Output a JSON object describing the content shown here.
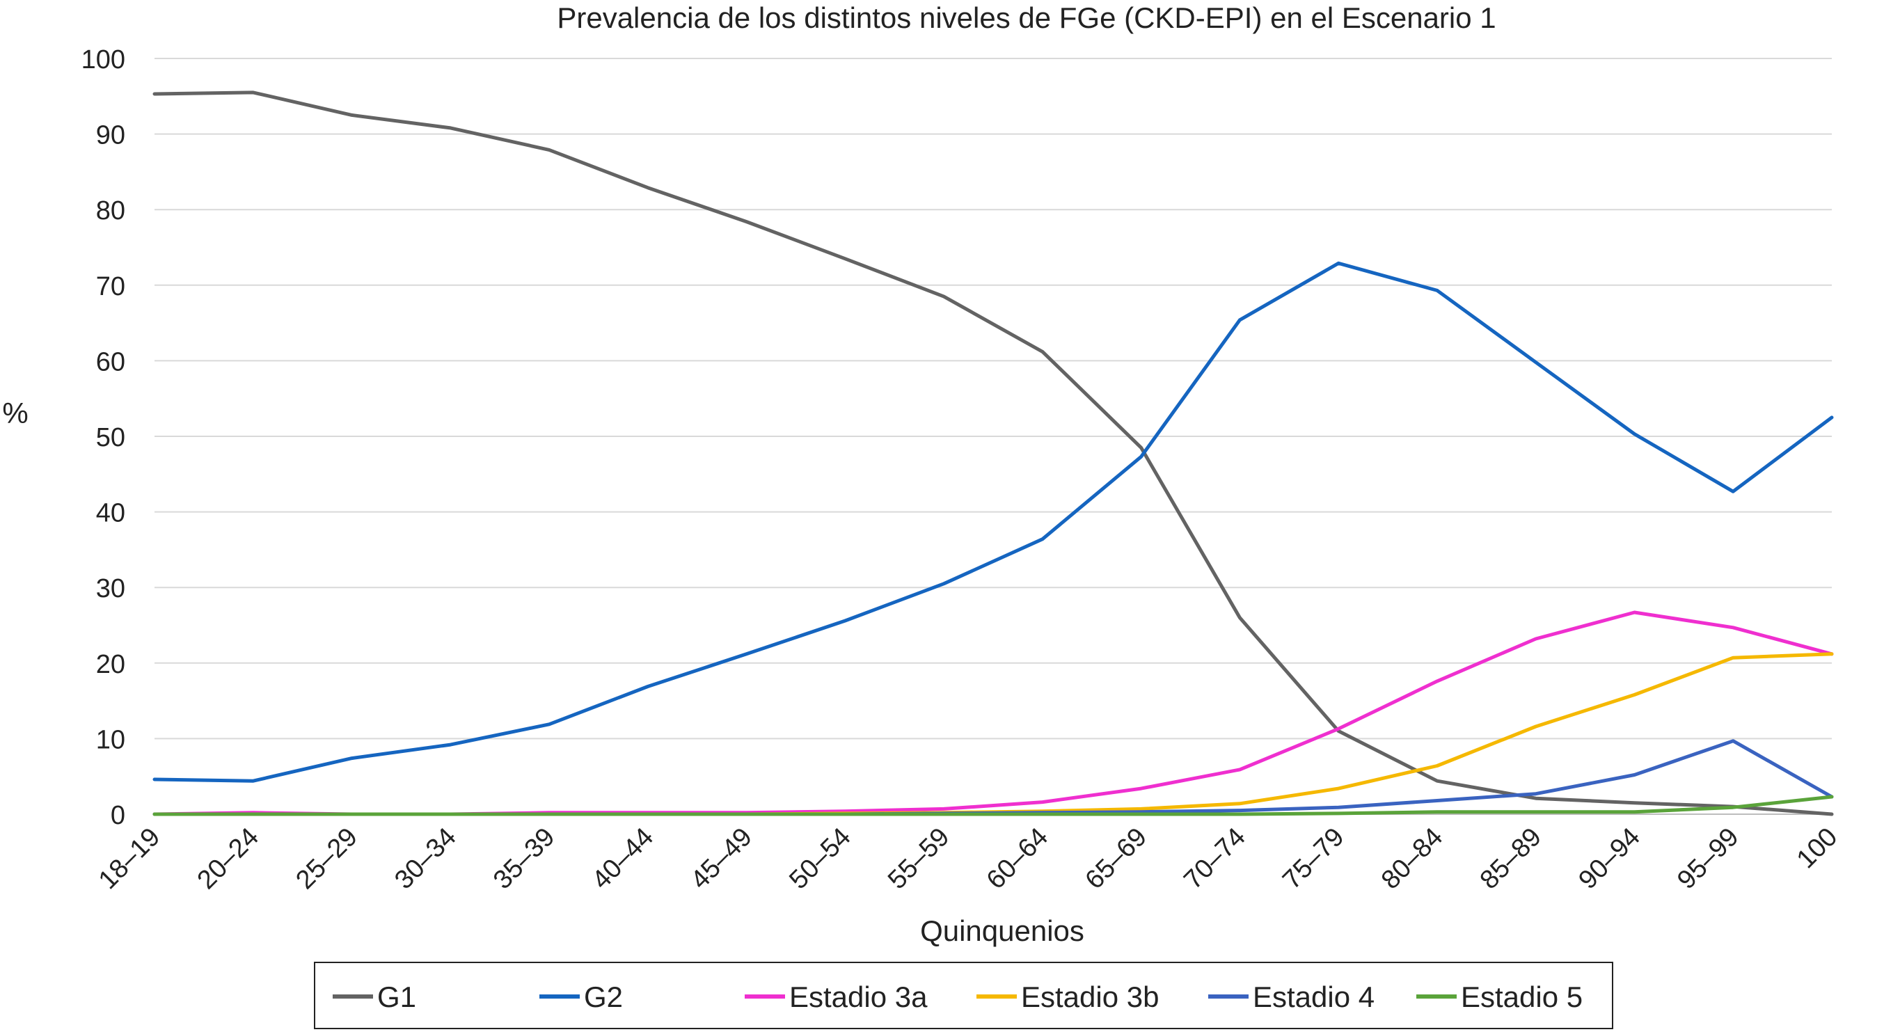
{
  "chart_data": {
    "type": "line",
    "title": "Prevalencia de los distintos niveles  de FGe (CKD-EPI) en el Escenario 1",
    "xlabel": "Quinquenios",
    "ylabel": "%",
    "ylim": [
      0,
      100
    ],
    "yticks": [
      0,
      10,
      20,
      30,
      40,
      50,
      60,
      70,
      80,
      90,
      100
    ],
    "grid": true,
    "legend_position": "bottom",
    "categories": [
      "18–19",
      "20–24",
      "25–29",
      "30–34",
      "35–39",
      "40–44",
      "45–49",
      "50–54",
      "55–59",
      "60–64",
      "65–69",
      "70–74",
      "75–79",
      "80–84",
      "85–89",
      "90–94",
      "95–99",
      "100"
    ],
    "series": [
      {
        "name": "G1",
        "color": "#636363",
        "values": [
          95.3,
          95.5,
          92.5,
          90.8,
          87.9,
          82.9,
          78.4,
          73.5,
          68.5,
          61.2,
          48.5,
          26.0,
          11.0,
          4.4,
          2.1,
          1.5,
          1.0,
          0.0
        ]
      },
      {
        "name": "G2",
        "color": "#1565c0",
        "values": [
          4.6,
          4.4,
          7.4,
          9.2,
          11.9,
          16.9,
          21.2,
          25.6,
          30.5,
          36.4,
          47.3,
          65.4,
          72.9,
          69.3,
          59.8,
          50.3,
          42.7,
          52.5
        ]
      },
      {
        "name": "Estadio 3a",
        "color": "#ef2fcf",
        "values": [
          0.0,
          0.2,
          0.0,
          0.0,
          0.2,
          0.2,
          0.2,
          0.4,
          0.7,
          1.6,
          3.4,
          5.9,
          11.3,
          17.6,
          23.2,
          26.7,
          24.7,
          21.2
        ]
      },
      {
        "name": "Estadio 3b",
        "color": "#f5b800",
        "values": [
          0.0,
          0.0,
          0.0,
          0.0,
          0.0,
          0.0,
          0.0,
          0.1,
          0.2,
          0.4,
          0.7,
          1.4,
          3.4,
          6.4,
          11.6,
          15.8,
          20.7,
          21.2
        ]
      },
      {
        "name": "Estadio 4",
        "color": "#3a63c0",
        "values": [
          0.0,
          0.0,
          0.0,
          0.0,
          0.0,
          0.0,
          0.0,
          0.0,
          0.1,
          0.2,
          0.3,
          0.5,
          0.9,
          1.8,
          2.7,
          5.2,
          9.7,
          2.3
        ]
      },
      {
        "name": "Estadio 5",
        "color": "#5aa33a",
        "values": [
          0.0,
          0.0,
          0.0,
          0.0,
          0.0,
          0.0,
          0.0,
          0.0,
          0.0,
          0.0,
          0.0,
          0.0,
          0.1,
          0.3,
          0.3,
          0.3,
          0.9,
          2.3
        ]
      }
    ]
  }
}
